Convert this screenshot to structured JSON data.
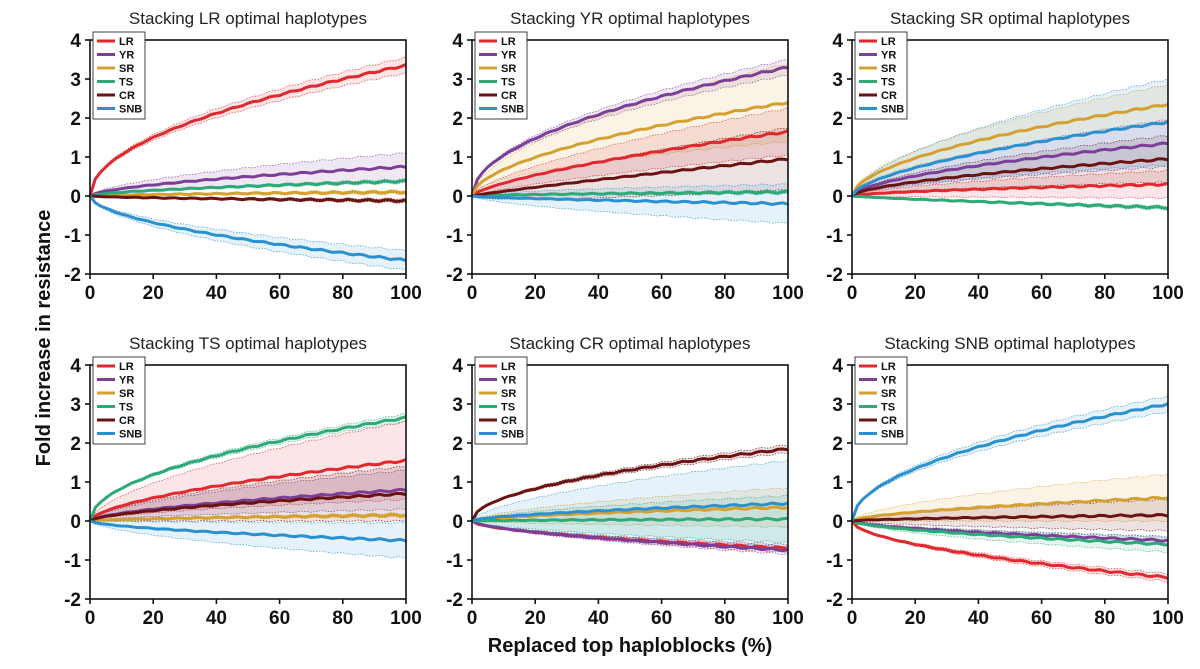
{
  "figure": {
    "xlabel": "Replaced top haploblocks (%)",
    "ylabel": "Fold increase in resistance"
  },
  "chart_data": [
    {
      "type": "line",
      "title": "Stacking LR optimal haplotypes",
      "xlim": [
        0,
        100
      ],
      "ylim": [
        -2,
        4
      ],
      "xticks": [
        "0",
        "20",
        "40",
        "60",
        "80",
        "100"
      ],
      "yticks": [
        "-2",
        "-1",
        "0",
        "1",
        "2",
        "3",
        "4"
      ],
      "legend": {
        "position": "top-left",
        "entries": [
          "LR",
          "YR",
          "SR",
          "TS",
          "CR",
          "SNB"
        ]
      },
      "series": [
        {
          "name": "LR",
          "color": "#e0282e",
          "final": 3.35,
          "spread": 0.2,
          "shape": 0.5
        },
        {
          "name": "YR",
          "color": "#7b3f98",
          "final": 0.75,
          "spread": 0.35,
          "shape": 0.6
        },
        {
          "name": "SR",
          "color": "#d4a030",
          "final": 0.1,
          "spread": 0.05,
          "shape": 0.6
        },
        {
          "name": "TS",
          "color": "#2eaa78",
          "final": 0.38,
          "spread": 0.05,
          "shape": 0.6
        },
        {
          "name": "CR",
          "color": "#6b1212",
          "final": -0.12,
          "spread": 0.05,
          "shape": 0.6
        },
        {
          "name": "SNB",
          "color": "#2b90cf",
          "final": -1.65,
          "spread": 0.25,
          "shape": 0.55
        }
      ]
    },
    {
      "type": "line",
      "title": "Stacking YR optimal haplotypes",
      "xlim": [
        0,
        100
      ],
      "ylim": [
        -2,
        4
      ],
      "xticks": [
        "0",
        "20",
        "40",
        "60",
        "80",
        "100"
      ],
      "yticks": [
        "-2",
        "-1",
        "0",
        "1",
        "2",
        "3",
        "4"
      ],
      "legend": {
        "position": "top-left",
        "entries": [
          "LR",
          "YR",
          "SR",
          "TS",
          "CR",
          "SNB"
        ]
      },
      "series": [
        {
          "name": "LR",
          "color": "#e0282e",
          "final": 1.65,
          "spread": 0.6,
          "shape": 0.7
        },
        {
          "name": "YR",
          "color": "#7b3f98",
          "final": 3.3,
          "spread": 0.2,
          "shape": 0.5
        },
        {
          "name": "SR",
          "color": "#d4a030",
          "final": 2.4,
          "spread": 1.0,
          "shape": 0.55
        },
        {
          "name": "TS",
          "color": "#2eaa78",
          "final": 0.1,
          "spread": 0.05,
          "shape": 0.6
        },
        {
          "name": "CR",
          "color": "#6b1212",
          "final": 0.95,
          "spread": 0.8,
          "shape": 0.9
        },
        {
          "name": "SNB",
          "color": "#2b90cf",
          "final": -0.2,
          "spread": 0.5,
          "shape": 0.7
        }
      ]
    },
    {
      "type": "line",
      "title": "Stacking SR optimal haplotypes",
      "xlim": [
        0,
        100
      ],
      "ylim": [
        -2,
        4
      ],
      "xticks": [
        "0",
        "20",
        "40",
        "60",
        "80",
        "100"
      ],
      "yticks": [
        "-2",
        "-1",
        "0",
        "1",
        "2",
        "3",
        "4"
      ],
      "legend": {
        "position": "top-left",
        "entries": [
          "LR",
          "YR",
          "SR",
          "TS",
          "CR",
          "SNB"
        ]
      },
      "series": [
        {
          "name": "LR",
          "color": "#e0282e",
          "final": 0.3,
          "spread": 0.35,
          "shape": 0.6
        },
        {
          "name": "YR",
          "color": "#7b3f98",
          "final": 1.35,
          "spread": 0.6,
          "shape": 0.6
        },
        {
          "name": "SR",
          "color": "#d4a030",
          "final": 2.35,
          "spread": 0.5,
          "shape": 0.55
        },
        {
          "name": "TS",
          "color": "#2eaa78",
          "final": -0.3,
          "spread": 0.05,
          "shape": 0.8
        },
        {
          "name": "CR",
          "color": "#6b1212",
          "final": 0.95,
          "spread": 0.6,
          "shape": 0.6
        },
        {
          "name": "SNB",
          "color": "#2b90cf",
          "final": 1.9,
          "spread": 1.1,
          "shape": 0.6
        }
      ]
    },
    {
      "type": "line",
      "title": "Stacking TS optimal haplotypes",
      "xlim": [
        0,
        100
      ],
      "ylim": [
        -2,
        4
      ],
      "xticks": [
        "0",
        "20",
        "40",
        "60",
        "80",
        "100"
      ],
      "yticks": [
        "-2",
        "-1",
        "0",
        "1",
        "2",
        "3",
        "4"
      ],
      "legend": {
        "position": "top-left",
        "entries": [
          "LR",
          "YR",
          "SR",
          "TS",
          "CR",
          "SNB"
        ]
      },
      "series": [
        {
          "name": "LR",
          "color": "#e0282e",
          "final": 1.55,
          "spread": 1.0,
          "shape": 0.6
        },
        {
          "name": "YR",
          "color": "#7b3f98",
          "final": 0.8,
          "spread": 0.5,
          "shape": 0.6
        },
        {
          "name": "SR",
          "color": "#d4a030",
          "final": 0.15,
          "spread": 0.05,
          "shape": 0.6
        },
        {
          "name": "TS",
          "color": "#2eaa78",
          "final": 2.65,
          "spread": 0.1,
          "shape": 0.5
        },
        {
          "name": "CR",
          "color": "#6b1212",
          "final": 0.7,
          "spread": 0.7,
          "shape": 0.6
        },
        {
          "name": "SNB",
          "color": "#2b90cf",
          "final": -0.5,
          "spread": 0.45,
          "shape": 0.6
        }
      ]
    },
    {
      "type": "line",
      "title": "Stacking CR optimal haplotypes",
      "xlim": [
        0,
        100
      ],
      "ylim": [
        -2,
        4
      ],
      "xticks": [
        "0",
        "20",
        "40",
        "60",
        "80",
        "100"
      ],
      "yticks": [
        "-2",
        "-1",
        "0",
        "1",
        "2",
        "3",
        "4"
      ],
      "legend": {
        "position": "top-left",
        "entries": [
          "LR",
          "YR",
          "SR",
          "TS",
          "CR",
          "SNB"
        ]
      },
      "series": [
        {
          "name": "LR",
          "color": "#e0282e",
          "final": -0.7,
          "spread": 0.1,
          "shape": 0.55
        },
        {
          "name": "YR",
          "color": "#7b3f98",
          "final": -0.75,
          "spread": 0.1,
          "shape": 0.6
        },
        {
          "name": "SR",
          "color": "#d4a030",
          "final": 0.35,
          "spread": 0.5,
          "shape": 0.6
        },
        {
          "name": "TS",
          "color": "#2eaa78",
          "final": 0.05,
          "spread": 0.6,
          "shape": 0.6
        },
        {
          "name": "CR",
          "color": "#6b1212",
          "final": 1.85,
          "spread": 0.1,
          "shape": 0.5
        },
        {
          "name": "SNB",
          "color": "#2b90cf",
          "final": 0.45,
          "spread": 1.1,
          "shape": 0.6
        }
      ]
    },
    {
      "type": "line",
      "title": "Stacking SNB optimal haplotypes",
      "xlim": [
        0,
        100
      ],
      "ylim": [
        -2,
        4
      ],
      "xticks": [
        "0",
        "20",
        "40",
        "60",
        "80",
        "100"
      ],
      "yticks": [
        "-2",
        "-1",
        "0",
        "1",
        "2",
        "3",
        "4"
      ],
      "legend": {
        "position": "top-left",
        "entries": [
          "LR",
          "YR",
          "SR",
          "TS",
          "CR",
          "SNB"
        ]
      },
      "series": [
        {
          "name": "LR",
          "color": "#e0282e",
          "final": -1.45,
          "spread": 0.1,
          "shape": 0.55
        },
        {
          "name": "YR",
          "color": "#7b3f98",
          "final": -0.5,
          "spread": 0.1,
          "shape": 0.6
        },
        {
          "name": "SR",
          "color": "#d4a030",
          "final": 0.6,
          "spread": 0.6,
          "shape": 0.6
        },
        {
          "name": "TS",
          "color": "#2eaa78",
          "final": -0.6,
          "spread": 0.2,
          "shape": 0.6
        },
        {
          "name": "CR",
          "color": "#6b1212",
          "final": 0.15,
          "spread": 0.4,
          "shape": 0.6
        },
        {
          "name": "SNB",
          "color": "#2b90cf",
          "final": 3.0,
          "spread": 0.2,
          "shape": 0.5
        }
      ]
    }
  ]
}
